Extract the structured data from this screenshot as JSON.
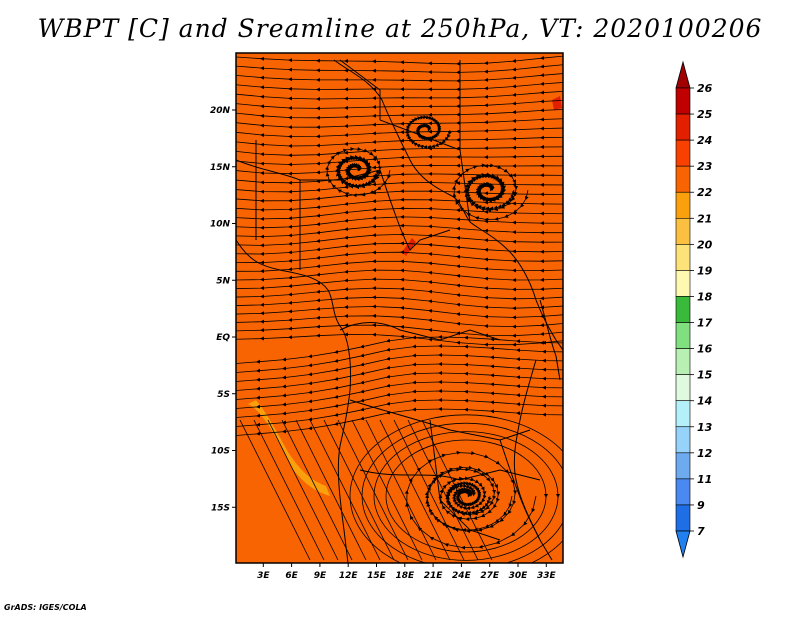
{
  "title": "WBPT [C] and Sreamline at 250hPa, VT: 2020100206",
  "credit": "GrADS: IGES/COLA",
  "map": {
    "lat_labels": [
      "20N",
      "15N",
      "10N",
      "5N",
      "EQ",
      "5S",
      "10S",
      "15S"
    ],
    "lon_labels": [
      "3E",
      "6E",
      "9E",
      "12E",
      "15E",
      "18E",
      "21E",
      "24E",
      "27E",
      "30E",
      "33E"
    ],
    "lat_values": [
      20,
      15,
      10,
      5,
      0,
      -5,
      -10,
      -15
    ],
    "lon_values": [
      3,
      6,
      9,
      12,
      15,
      18,
      21,
      24,
      27,
      30,
      33
    ],
    "field_color": "#f86402",
    "band_color": "#f9a00c"
  },
  "colorbar": {
    "levels": [
      {
        "label": "26",
        "color": "#a00000"
      },
      {
        "label": "25",
        "color": "#c00000"
      },
      {
        "label": "24",
        "color": "#e22000"
      },
      {
        "label": "23",
        "color": "#f84000"
      },
      {
        "label": "22",
        "color": "#f86402"
      },
      {
        "label": "21",
        "color": "#f9a00c"
      },
      {
        "label": "20",
        "color": "#fbc040"
      },
      {
        "label": "19",
        "color": "#fde27a"
      },
      {
        "label": "18",
        "color": "#fff8b0"
      },
      {
        "label": "17",
        "color": "#3aba3a"
      },
      {
        "label": "16",
        "color": "#80e080"
      },
      {
        "label": "15",
        "color": "#b8f0b4"
      },
      {
        "label": "14",
        "color": "#e0fae0"
      },
      {
        "label": "13",
        "color": "#b4f0fa"
      },
      {
        "label": "12",
        "color": "#96d2fa"
      },
      {
        "label": "11",
        "color": "#6eaaf0"
      },
      {
        "label": "9",
        "color": "#4a8af0"
      },
      {
        "label": "7",
        "color": "#1e6ee6"
      }
    ],
    "bottom_color": "#2080f0"
  }
}
